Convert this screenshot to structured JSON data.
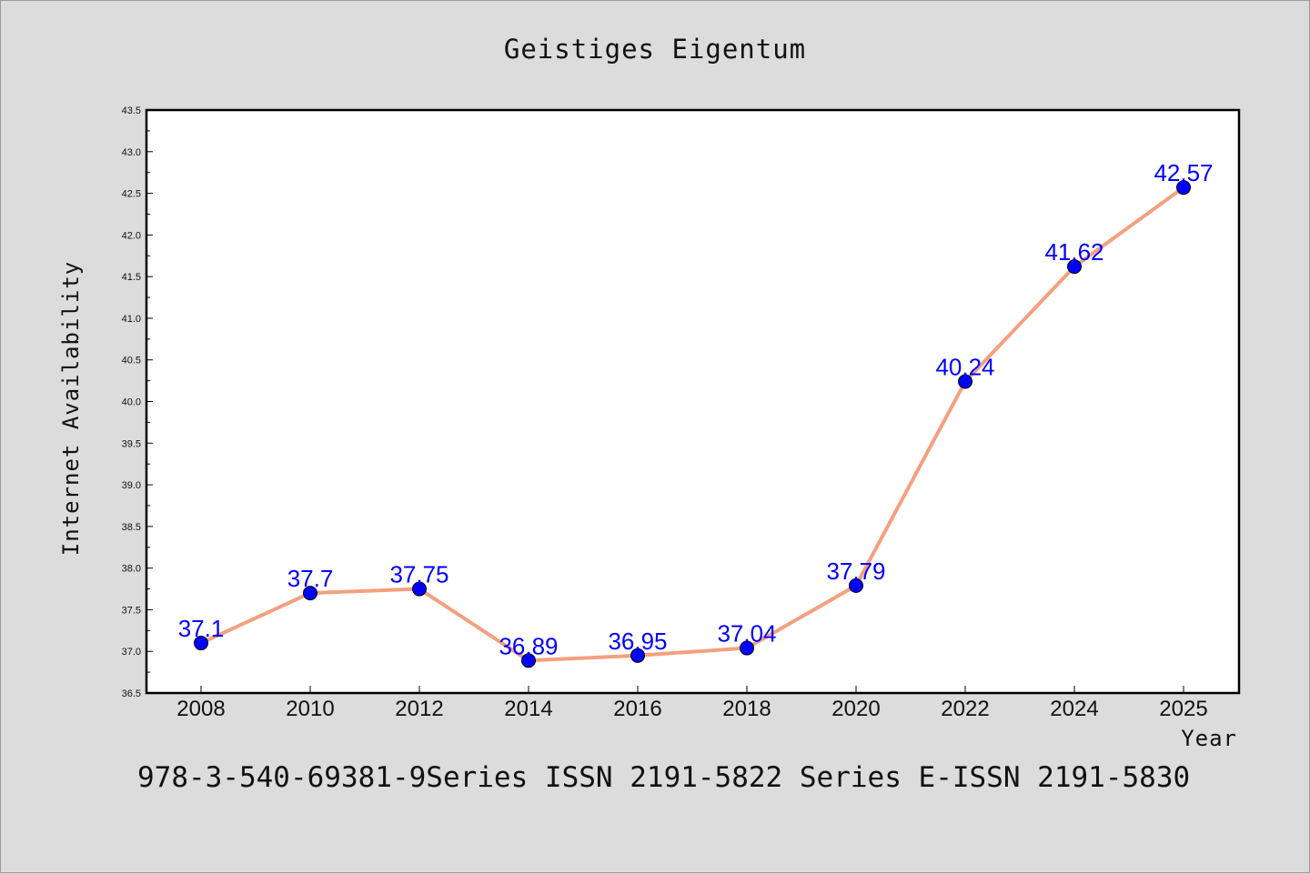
{
  "chart_data": {
    "type": "line",
    "title": "Geistiges Eigentum",
    "xlabel": "Year",
    "ylabel": "Internet Availability",
    "categories": [
      "2008",
      "2010",
      "2012",
      "2014",
      "2016",
      "2018",
      "2020",
      "2022",
      "2024",
      "2025"
    ],
    "series": [
      {
        "values": [
          37.1,
          37.7,
          37.75,
          36.89,
          36.95,
          37.04,
          37.79,
          40.24,
          41.62,
          42.57
        ],
        "labels": [
          "37.1",
          "37.7",
          "37.75",
          "36.89",
          "36.95",
          "37.04",
          "37.79",
          "40.24",
          "41.62",
          "42.57"
        ]
      }
    ],
    "ylim": [
      36.5,
      43.5
    ],
    "yticks": [
      "36.5",
      "37.0",
      "37.5",
      "38.0",
      "38.5",
      "39.0",
      "39.5",
      "40.0",
      "40.5",
      "41.0",
      "41.5",
      "42.0",
      "42.5",
      "43.0",
      "43.5"
    ],
    "grid": false,
    "line_color": "#f4a07f",
    "marker_color": "#0000ff",
    "label_color": "#0000ff"
  },
  "footer": {
    "text": "978-3-540-69381-9Series ISSN 2191-5822 Series E-ISSN 2191-5830"
  }
}
